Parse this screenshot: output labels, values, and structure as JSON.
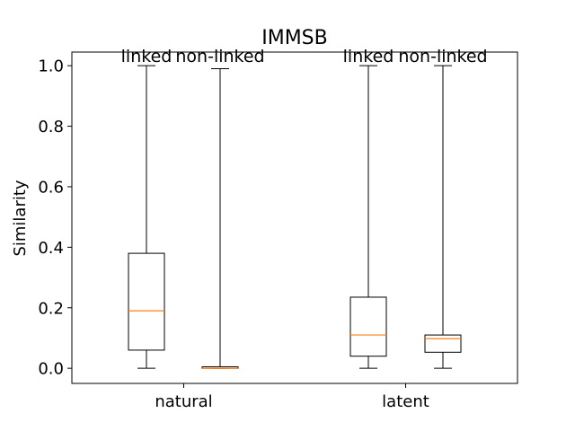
{
  "chart_data": {
    "type": "box",
    "title": "IMMSB",
    "ylabel": "Similarity",
    "xlabel": "",
    "ylim": [
      -0.05,
      1.045
    ],
    "yticks": [
      "0.0",
      "0.2",
      "0.4",
      "0.6",
      "0.8",
      "1.0"
    ],
    "categories": [
      "natural",
      "latent"
    ],
    "grid": false,
    "colors": {
      "median": "#ff7f0e",
      "box": "#000000"
    },
    "boxes": [
      {
        "group": "natural",
        "label": "linked",
        "whislo": 0.0,
        "q1": 0.06,
        "med": 0.19,
        "q3": 0.38,
        "whishi": 1.0
      },
      {
        "group": "natural",
        "label": "non-linked",
        "whislo": 0.0,
        "q1": 0.0,
        "med": 0.0,
        "q3": 0.005,
        "whishi": 0.99
      },
      {
        "group": "latent",
        "label": "linked",
        "whislo": 0.0,
        "q1": 0.04,
        "med": 0.11,
        "q3": 0.235,
        "whishi": 1.0
      },
      {
        "group": "latent",
        "label": "non-linked",
        "whislo": 0.0,
        "q1": 0.053,
        "med": 0.098,
        "q3": 0.11,
        "whishi": 1.0
      }
    ]
  }
}
